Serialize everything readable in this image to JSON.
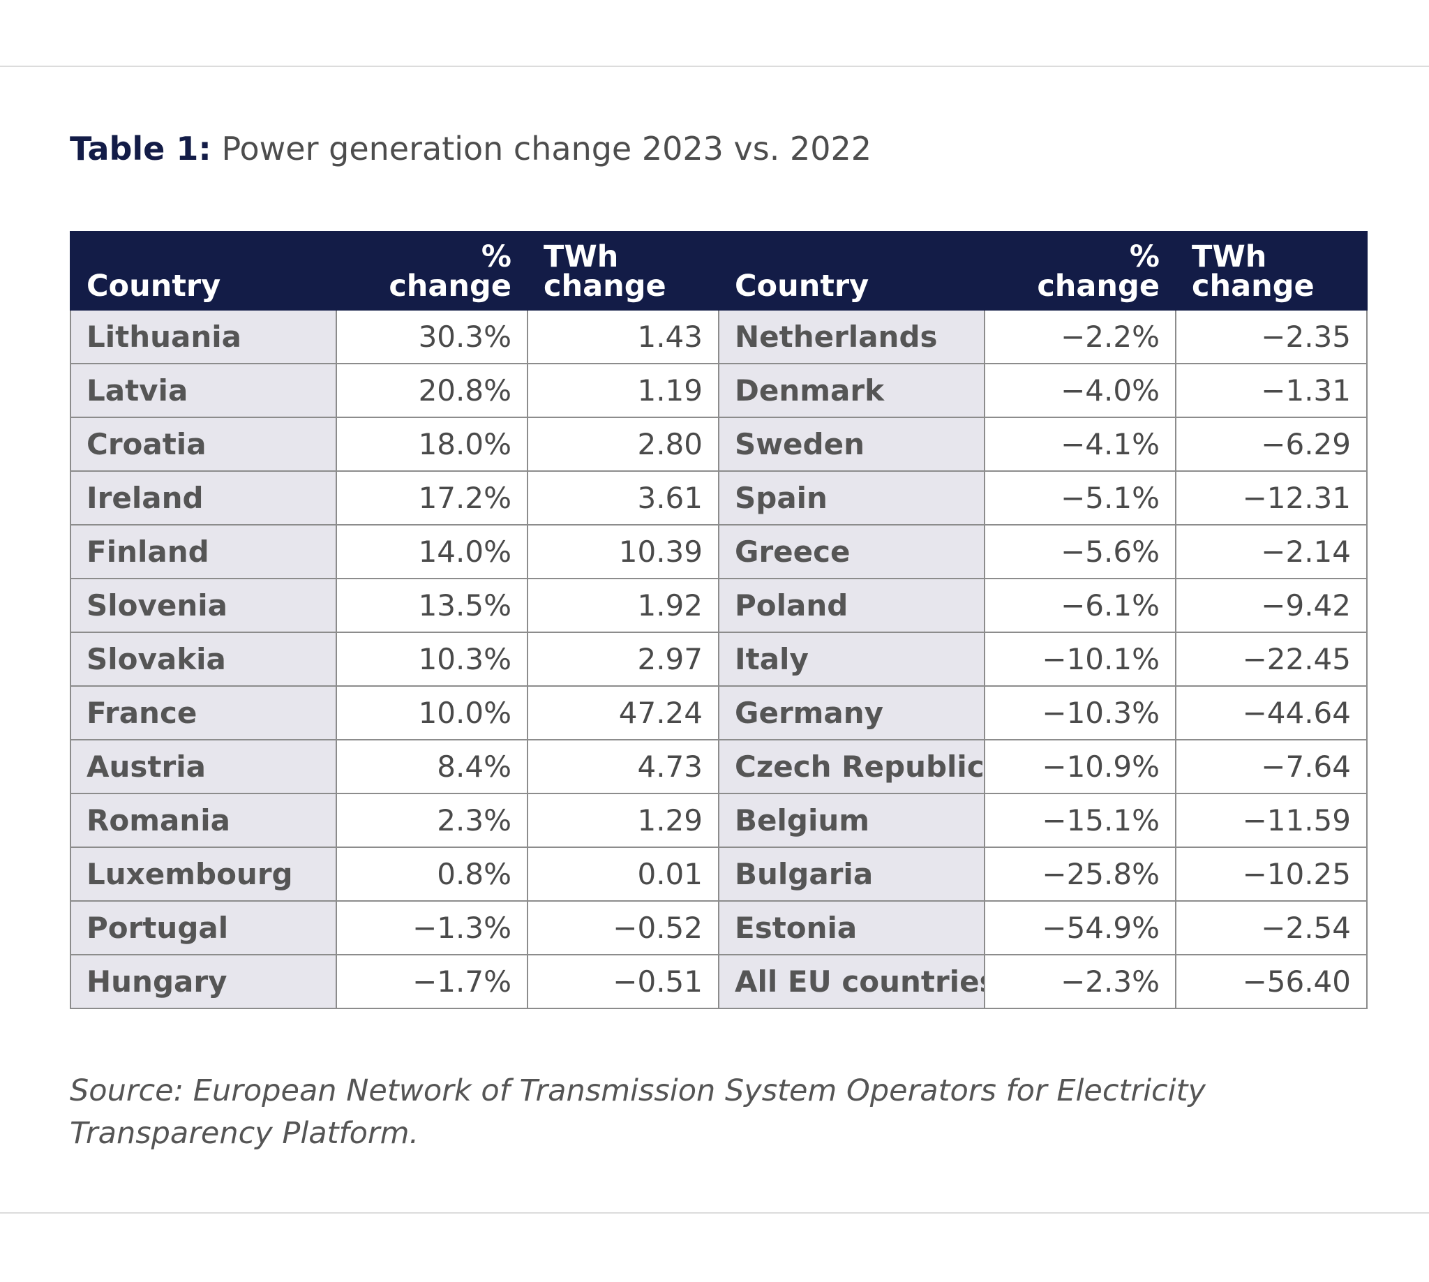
{
  "title": {
    "label": "Table 1:",
    "text": "Power generation change 2023 vs. 2022"
  },
  "table": {
    "headers": [
      "Country",
      "% change",
      "TWh\nchange",
      "Country",
      "% change",
      "TWh\nchange"
    ],
    "rows": [
      [
        "Lithuania",
        "30.3%",
        "1.43",
        "Netherlands",
        "−2.2%",
        "−2.35"
      ],
      [
        "Latvia",
        "20.8%",
        "1.19",
        "Denmark",
        "−4.0%",
        "−1.31"
      ],
      [
        "Croatia",
        "18.0%",
        "2.80",
        "Sweden",
        "−4.1%",
        "−6.29"
      ],
      [
        "Ireland",
        "17.2%",
        "3.61",
        "Spain",
        "−5.1%",
        "−12.31"
      ],
      [
        "Finland",
        "14.0%",
        "10.39",
        "Greece",
        "−5.6%",
        "−2.14"
      ],
      [
        "Slovenia",
        "13.5%",
        "1.92",
        "Poland",
        "−6.1%",
        "−9.42"
      ],
      [
        "Slovakia",
        "10.3%",
        "2.97",
        "Italy",
        "−10.1%",
        "−22.45"
      ],
      [
        "France",
        "10.0%",
        "47.24",
        "Germany",
        "−10.3%",
        "−44.64"
      ],
      [
        "Austria",
        "8.4%",
        "4.73",
        "Czech Republic",
        "−10.9%",
        "−7.64"
      ],
      [
        "Romania",
        "2.3%",
        "1.29",
        "Belgium",
        "−15.1%",
        "−11.59"
      ],
      [
        "Luxembourg",
        "0.8%",
        "0.01",
        "Bulgaria",
        "−25.8%",
        "−10.25"
      ],
      [
        "Portugal",
        "−1.3%",
        "−0.52",
        "Estonia",
        "−54.9%",
        "−2.54"
      ],
      [
        "Hungary",
        "−1.7%",
        "−0.51",
        "All EU countries",
        "−2.3%",
        "−56.40"
      ]
    ]
  },
  "source": "Source: European Network of Transmission System Operators for Electricity Transparency Platform."
}
